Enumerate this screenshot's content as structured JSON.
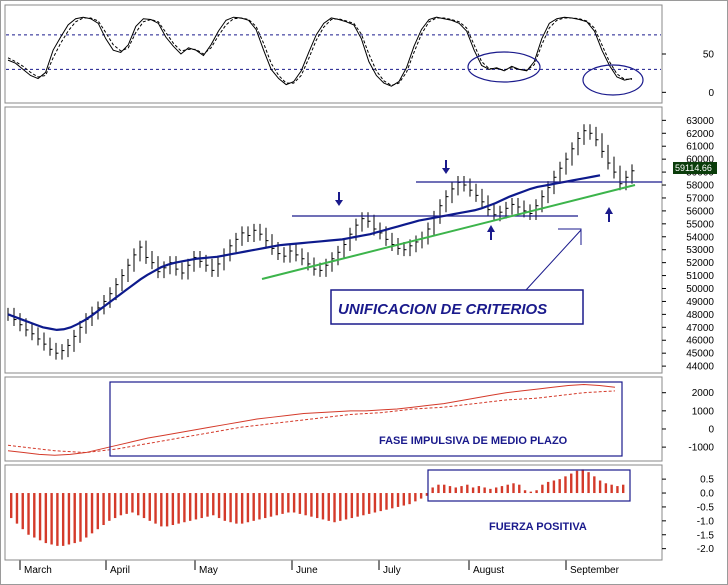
{
  "chart_data": [
    {
      "type": "line",
      "panel": "stochastic",
      "yticks": [
        0,
        50
      ],
      "ylim": [
        -10,
        110
      ],
      "reference_lines": [
        30,
        75
      ],
      "series": [
        {
          "values": [
            42,
            38,
            30,
            22,
            18,
            26,
            55,
            72,
            88,
            96,
            98,
            96,
            90,
            70,
            55,
            52,
            62,
            86,
            96,
            95,
            90,
            72,
            60,
            50,
            58,
            55,
            48,
            62,
            80,
            94,
            98,
            97,
            94,
            82,
            55,
            30,
            18,
            10,
            14,
            28,
            52,
            75,
            90,
            97,
            95,
            92,
            88,
            70,
            40,
            22,
            12,
            8,
            14,
            32,
            60,
            82,
            95,
            98,
            96,
            94,
            90,
            80,
            55,
            35,
            30,
            32,
            28,
            34,
            30,
            28,
            40,
            70,
            90,
            96,
            98,
            97,
            95,
            92,
            80,
            55,
            35,
            20,
            16,
            18
          ]
        },
        {
          "values": [
            45,
            40,
            34,
            26,
            20,
            22,
            45,
            64,
            80,
            92,
            97,
            97,
            93,
            78,
            62,
            54,
            58,
            78,
            92,
            95,
            92,
            78,
            64,
            54,
            56,
            56,
            50,
            58,
            74,
            88,
            96,
            97,
            95,
            86,
            64,
            38,
            22,
            12,
            12,
            22,
            44,
            68,
            85,
            95,
            96,
            93,
            90,
            76,
            50,
            28,
            15,
            9,
            12,
            26,
            52,
            76,
            92,
            97,
            97,
            95,
            92,
            84,
            62,
            40,
            31,
            31,
            29,
            32,
            30,
            29,
            36,
            62,
            84,
            94,
            97,
            97,
            96,
            93,
            84,
            62,
            40,
            24,
            17,
            17
          ]
        }
      ]
    },
    {
      "type": "bar",
      "panel": "price",
      "yticks": [
        44000,
        45000,
        46000,
        47000,
        48000,
        49000,
        50000,
        51000,
        52000,
        53000,
        54000,
        55000,
        56000,
        57000,
        58000,
        59000,
        60000,
        61000,
        62000,
        63000
      ],
      "ylim": [
        43700,
        63800
      ],
      "last_value": "59114.66",
      "ohlc_close": [
        48000,
        47600,
        47200,
        46800,
        46500,
        46100,
        45700,
        45300,
        45000,
        45200,
        45600,
        46300,
        47000,
        47600,
        48100,
        48500,
        49000,
        49600,
        50300,
        51000,
        51800,
        52600,
        53200,
        52400,
        52000,
        51300,
        51600,
        52000,
        51500,
        51200,
        51800,
        52400,
        52100,
        51800,
        51400,
        51900,
        52600,
        53300,
        53800,
        54300,
        54100,
        54500,
        54200,
        53700,
        53100,
        52700,
        52500,
        52900,
        52600,
        52300,
        51900,
        51500,
        51400,
        51800,
        52300,
        52800,
        53400,
        54200,
        54900,
        55400,
        55200,
        54600,
        54300,
        53800,
        53400,
        53100,
        53000,
        53300,
        53600,
        53900,
        54600,
        55500,
        56400,
        57100,
        57700,
        58200,
        58000,
        57600,
        57200,
        56700,
        56100,
        55700,
        55900,
        56200,
        56500,
        56300,
        56000,
        55800,
        56400,
        57100,
        57800,
        58600,
        59300,
        60000,
        60800,
        61600,
        62200,
        62000,
        61500,
        60600,
        59700,
        59000,
        58100,
        58600,
        59100
      ],
      "moving_average": [
        48000,
        47800,
        47600,
        47400,
        47200,
        47000,
        46900,
        46800,
        46850,
        47000,
        47250,
        47550,
        47900,
        48300,
        48700,
        49100,
        49500,
        49900,
        50300,
        50700,
        51050,
        51350,
        51650,
        51850,
        52000,
        52100,
        52200,
        52300,
        52350,
        52400,
        52450,
        52550,
        52650,
        52750,
        52850,
        52950,
        53050,
        53150,
        53250,
        53350,
        53400,
        53450,
        53500,
        53550,
        53600,
        53650,
        53700,
        53750,
        53800,
        53900,
        54000,
        54100,
        54200,
        54350,
        54500,
        54650,
        54800,
        54950,
        55100,
        55250,
        55350,
        55450,
        55550,
        55650,
        55750,
        55850,
        55950,
        56050,
        56200,
        56400,
        56600,
        56850,
        57100,
        57300,
        57500,
        57700,
        57850,
        57950,
        58050,
        58150,
        58250,
        58350,
        58450,
        58550,
        58650,
        58750
      ],
      "annotation": "UNIFICACION DE CRITERIOS"
    },
    {
      "type": "line",
      "panel": "medium-term",
      "yticks": [
        -1000,
        0,
        1000,
        2000
      ],
      "ylim": [
        -1600,
        2700
      ],
      "series": [
        {
          "values": [
            -1200,
            -1300,
            -1400,
            -1450,
            -1400,
            -1300,
            -1100,
            -900,
            -700,
            -500,
            -350,
            -200,
            -50,
            100,
            250,
            400,
            550,
            650,
            750,
            850,
            900,
            950,
            1000,
            1000,
            1050,
            1100,
            1200,
            1300,
            1400,
            1550,
            1700,
            1850,
            2000,
            2100,
            2200,
            2300,
            2400,
            2450,
            2400,
            2300
          ]
        },
        {
          "values": [
            -900,
            -1000,
            -1100,
            -1200,
            -1250,
            -1300,
            -1200,
            -1100,
            -950,
            -800,
            -650,
            -500,
            -350,
            -200,
            -50,
            100,
            200,
            300,
            400,
            500,
            600,
            700,
            800,
            850,
            900,
            1000,
            1100,
            1150,
            1200,
            1300,
            1400,
            1500,
            1600,
            1650,
            1700,
            1800,
            1900,
            2000,
            2050,
            2100
          ]
        }
      ],
      "annotation": "FASE IMPULSIVA DE MEDIO PLAZO"
    },
    {
      "type": "bar",
      "panel": "histogram",
      "yticks": [
        -2.0,
        -1.5,
        -1.0,
        -0.5,
        0.0,
        0.5
      ],
      "ylim": [
        -2.3,
        0.9
      ],
      "values": [
        -0.9,
        -1.1,
        -1.3,
        -1.5,
        -1.6,
        -1.7,
        -1.8,
        -1.85,
        -1.9,
        -1.9,
        -1.85,
        -1.8,
        -1.75,
        -1.6,
        -1.45,
        -1.3,
        -1.15,
        -1.0,
        -0.9,
        -0.8,
        -0.75,
        -0.7,
        -0.8,
        -0.9,
        -1.0,
        -1.1,
        -1.2,
        -1.2,
        -1.15,
        -1.1,
        -1.05,
        -1.0,
        -0.95,
        -0.9,
        -0.85,
        -0.8,
        -0.9,
        -1.0,
        -1.05,
        -1.1,
        -1.1,
        -1.05,
        -1.0,
        -0.95,
        -0.9,
        -0.85,
        -0.8,
        -0.75,
        -0.7,
        -0.7,
        -0.75,
        -0.8,
        -0.85,
        -0.9,
        -0.95,
        -1.0,
        -1.05,
        -1.0,
        -0.95,
        -0.9,
        -0.85,
        -0.8,
        -0.75,
        -0.7,
        -0.65,
        -0.6,
        -0.55,
        -0.5,
        -0.45,
        -0.4,
        -0.3,
        -0.2,
        -0.1,
        0.2,
        0.3,
        0.3,
        0.25,
        0.2,
        0.25,
        0.3,
        0.2,
        0.25,
        0.2,
        0.15,
        0.2,
        0.25,
        0.3,
        0.35,
        0.3,
        0.1,
        0.05,
        0.1,
        0.3,
        0.4,
        0.45,
        0.5,
        0.6,
        0.7,
        0.8,
        0.85,
        0.75,
        0.6,
        0.45,
        0.35,
        0.3,
        0.25,
        0.3
      ],
      "annotation": "FUERZA POSITIVA"
    }
  ],
  "x_axis": {
    "months": [
      "March",
      "April",
      "May",
      "June",
      "July",
      "August",
      "September"
    ]
  },
  "colors": {
    "price_bars": "#000000",
    "moving_average": "#0d1a8c",
    "trend_support": "#3cb44b",
    "resistance_lines": "#1a1a8c",
    "oscillator": "#d43a2a",
    "annotation": "#1a1a8c",
    "last_value_bg": "#0b3d0b"
  }
}
